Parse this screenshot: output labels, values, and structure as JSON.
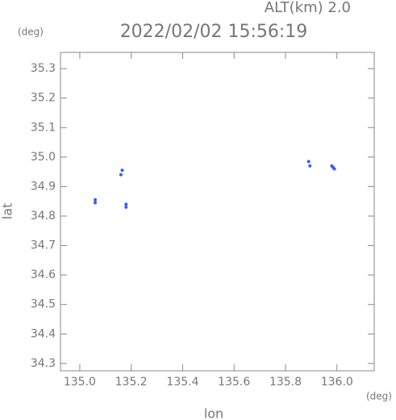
{
  "chart_data": {
    "type": "scatter",
    "title": "2022/02/02 15:56:19",
    "subtitle": "ALT(km) 2.0",
    "x_label": "lon",
    "y_label": "lat",
    "x_unit": "(deg)",
    "y_unit": "(deg)",
    "x": [
      135.06,
      135.06,
      135.16,
      135.165,
      135.18,
      135.18,
      135.89,
      135.895,
      135.98,
      135.99,
      135.985
    ],
    "y": [
      34.855,
      34.845,
      34.94,
      34.955,
      34.84,
      34.83,
      34.985,
      34.97,
      34.97,
      34.96,
      34.965
    ],
    "color": "#3d5bf0",
    "xlim": [
      134.925,
      136.145
    ],
    "ylim": [
      34.275,
      35.355
    ],
    "xticks": [
      {
        "value": 135.0,
        "label": "135.0"
      },
      135.2,
      135.4,
      135.6,
      135.8,
      {
        "value": 136.0,
        "label": "136.0"
      }
    ],
    "yticks": [
      34.3,
      34.4,
      34.5,
      34.6,
      34.7,
      34.8,
      34.9,
      {
        "value": 35.0,
        "label": "35.0"
      },
      35.1,
      35.2,
      35.3
    ]
  }
}
